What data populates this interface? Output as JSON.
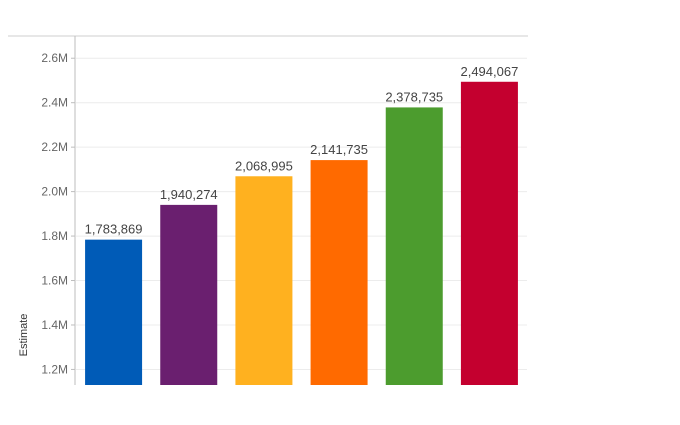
{
  "chart_data": {
    "type": "bar",
    "title": "",
    "xlabel": "",
    "ylabel": "Estimate",
    "ylim": [
      1130000,
      2700000
    ],
    "yticks": [
      1200000,
      1400000,
      1600000,
      1800000,
      2000000,
      2200000,
      2400000,
      2600000
    ],
    "ytick_labels": [
      "1.2M",
      "1.4M",
      "1.6M",
      "1.8M",
      "2.0M",
      "2.2M",
      "2.4M",
      "2.6M"
    ],
    "grid": true,
    "legend": "none",
    "values": [
      1783869,
      1940274,
      2068995,
      2141735,
      2378735,
      2494067
    ],
    "value_labels": [
      "1,783,869",
      "1,940,274",
      "2,068,995",
      "2,141,735",
      "2,378,735",
      "2,494,067"
    ],
    "colors": [
      "#005BB7",
      "#6A1F6F",
      "#FFB11F",
      "#FF6A00",
      "#4C9C2E",
      "#C4002F"
    ]
  }
}
